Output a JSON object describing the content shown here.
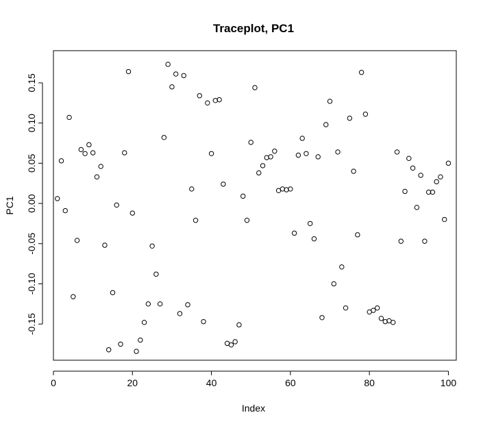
{
  "chart_data": {
    "type": "scatter",
    "title": "Traceplot, PC1",
    "xlabel": "Index",
    "ylabel": "PC1",
    "xlim": [
      0,
      102
    ],
    "ylim": [
      -0.195,
      0.19
    ],
    "xticks": [
      0,
      20,
      40,
      60,
      80,
      100
    ],
    "xtick_labels": [
      "0",
      "20",
      "40",
      "60",
      "80",
      "100"
    ],
    "yticks": [
      -0.15,
      -0.1,
      -0.05,
      0.0,
      0.05,
      0.1,
      0.15
    ],
    "ytick_labels": [
      "-0.15",
      "-0.10",
      "-0.05",
      "0.00",
      "0.05",
      "0.10",
      "0.15"
    ],
    "grid": false,
    "marker": "open-circle",
    "x": [
      1,
      2,
      3,
      4,
      5,
      6,
      7,
      8,
      9,
      10,
      11,
      12,
      13,
      14,
      15,
      16,
      17,
      18,
      19,
      20,
      21,
      22,
      23,
      24,
      25,
      26,
      27,
      28,
      29,
      30,
      31,
      32,
      33,
      34,
      35,
      36,
      37,
      38,
      39,
      40,
      41,
      42,
      43,
      44,
      45,
      46,
      47,
      48,
      49,
      50,
      51,
      52,
      53,
      54,
      55,
      56,
      57,
      58,
      59,
      60,
      61,
      62,
      63,
      64,
      65,
      66,
      67,
      68,
      69,
      70,
      71,
      72,
      73,
      74,
      75,
      76,
      77,
      78,
      79,
      80,
      81,
      82,
      83,
      84,
      85,
      86,
      87,
      88,
      89,
      90,
      91,
      92,
      93,
      94,
      95,
      96,
      97,
      98,
      99,
      100
    ],
    "y": [
      0.006,
      0.053,
      -0.009,
      0.107,
      -0.116,
      -0.046,
      0.067,
      0.062,
      0.073,
      0.063,
      0.033,
      0.046,
      -0.052,
      -0.182,
      -0.111,
      -0.002,
      -0.175,
      0.063,
      0.164,
      -0.012,
      -0.184,
      -0.17,
      -0.148,
      -0.125,
      -0.053,
      -0.088,
      -0.125,
      0.082,
      0.173,
      0.145,
      0.161,
      -0.137,
      0.159,
      -0.126,
      0.018,
      -0.021,
      0.134,
      -0.147,
      0.125,
      0.062,
      0.128,
      0.129,
      0.024,
      -0.174,
      -0.176,
      -0.172,
      -0.151,
      0.009,
      -0.021,
      0.076,
      0.144,
      0.038,
      0.047,
      0.057,
      0.058,
      0.065,
      0.016,
      0.018,
      0.017,
      0.018,
      -0.037,
      0.06,
      0.081,
      0.062,
      -0.025,
      -0.044,
      0.058,
      -0.142,
      0.098,
      0.127,
      -0.1,
      0.064,
      -0.079,
      -0.13,
      0.106,
      0.04,
      -0.039,
      0.163,
      0.111,
      -0.135,
      -0.133,
      -0.13,
      -0.143,
      -0.147,
      -0.146,
      -0.148,
      0.064,
      -0.047,
      0.015,
      0.056,
      0.044,
      -0.005,
      0.035,
      -0.047,
      0.014,
      0.014,
      0.027,
      0.033,
      -0.02,
      0.05
    ]
  }
}
